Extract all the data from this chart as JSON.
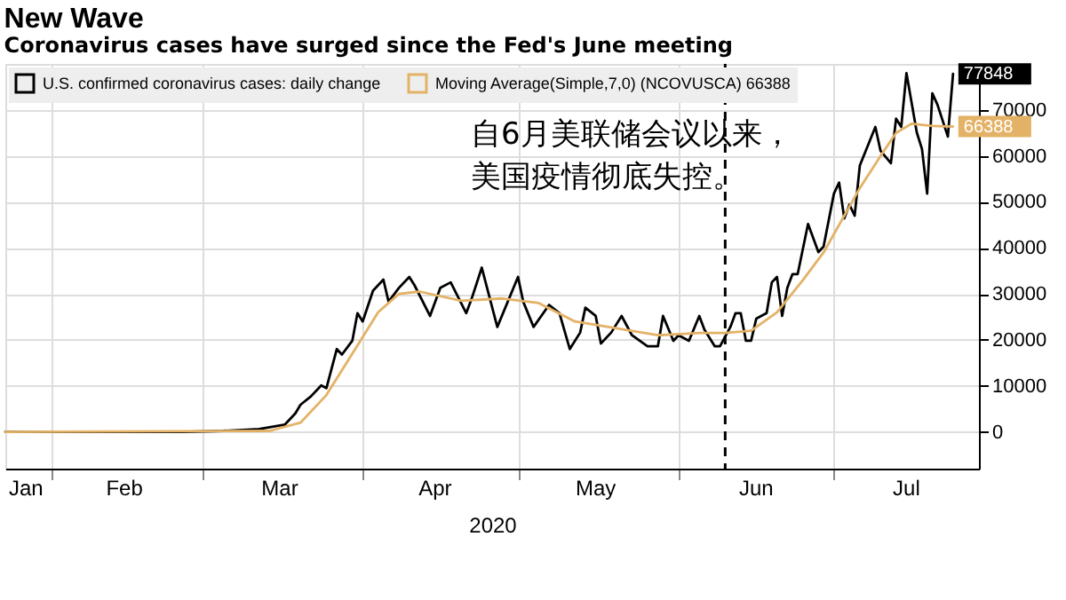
{
  "chart_data": {
    "type": "line",
    "title": "New Wave",
    "subtitle": "Coronavirus cases have surged since the Fed's June meeting",
    "xlabel": "2020",
    "xlim": [
      "2020-01-23",
      "2020-07-29"
    ],
    "xticks": [
      {
        "value": "2020-02-01",
        "label": null
      },
      {
        "value": "2020-03-01",
        "label": null
      },
      {
        "value": "2020-04-01",
        "label": null
      },
      {
        "value": "2020-05-01",
        "label": null
      },
      {
        "value": "2020-06-01",
        "label": null
      },
      {
        "value": "2020-07-01",
        "label": null
      },
      {
        "value": "2020-01-27",
        "label": "Jan"
      },
      {
        "value": "2020-02-15",
        "label": "Feb"
      },
      {
        "value": "2020-03-16",
        "label": "Mar"
      },
      {
        "value": "2020-04-15",
        "label": "Apr"
      },
      {
        "value": "2020-05-16",
        "label": "May"
      },
      {
        "value": "2020-06-16",
        "label": "Jun"
      },
      {
        "value": "2020-07-15",
        "label": "Jul"
      }
    ],
    "ylim": [
      -8000,
      80000
    ],
    "yticks": [
      0,
      10000,
      20000,
      30000,
      40000,
      50000,
      60000,
      70000
    ],
    "grid": true,
    "legend": "top left",
    "line_style": "solid",
    "marker": "none",
    "ref_lines": [
      {
        "axis": "x",
        "value": "2020-06-10",
        "color": "#000000",
        "line_style": "dashed"
      }
    ],
    "annotations": [
      "自6月美联储会议以来，美国疫情彻底失控。"
    ],
    "series": [
      {
        "name": "U.S. confirmed coronavirus cases: daily change",
        "color": "#000000",
        "x": [
          "2020-01-23",
          "2020-02-01",
          "2020-02-26",
          "2020-03-05",
          "2020-03-12",
          "2020-03-17",
          "2020-03-19",
          "2020-03-20",
          "2020-03-22",
          "2020-03-24",
          "2020-03-25",
          "2020-03-27",
          "2020-03-28",
          "2020-03-30",
          "2020-03-31",
          "2020-04-01",
          "2020-04-03",
          "2020-04-05",
          "2020-04-06",
          "2020-04-08",
          "2020-04-10",
          "2020-04-11",
          "2020-04-14",
          "2020-04-16",
          "2020-04-18",
          "2020-04-21",
          "2020-04-22",
          "2020-04-24",
          "2020-04-27",
          "2020-05-01",
          "2020-05-02",
          "2020-05-04",
          "2020-05-07",
          "2020-05-09",
          "2020-05-11",
          "2020-05-13",
          "2020-05-14",
          "2020-05-16",
          "2020-05-17",
          "2020-05-19",
          "2020-05-21",
          "2020-05-23",
          "2020-05-26",
          "2020-05-28",
          "2020-05-29",
          "2020-05-31",
          "2020-06-01",
          "2020-06-03",
          "2020-06-05",
          "2020-06-06",
          "2020-06-08",
          "2020-06-09",
          "2020-06-11",
          "2020-06-12",
          "2020-06-13",
          "2020-06-14",
          "2020-06-15",
          "2020-06-16",
          "2020-06-18",
          "2020-06-19",
          "2020-06-20",
          "2020-06-21",
          "2020-06-22",
          "2020-06-23",
          "2020-06-24",
          "2020-06-26",
          "2020-06-28",
          "2020-06-29",
          "2020-07-01",
          "2020-07-02",
          "2020-07-03",
          "2020-07-04",
          "2020-07-05",
          "2020-07-06",
          "2020-07-09",
          "2020-07-10",
          "2020-07-12",
          "2020-07-13",
          "2020-07-14",
          "2020-07-15",
          "2020-07-17",
          "2020-07-18",
          "2020-07-19",
          "2020-07-20",
          "2020-07-21",
          "2020-07-23",
          "2020-07-24"
        ],
        "values": [
          0,
          0,
          0,
          200,
          600,
          1600,
          4000,
          5900,
          7700,
          10100,
          9500,
          18000,
          16800,
          19800,
          25800,
          24000,
          30700,
          33100,
          28300,
          31300,
          33700,
          31900,
          25200,
          31300,
          32500,
          25800,
          28800,
          35700,
          22800,
          33700,
          28300,
          22800,
          27600,
          25800,
          18000,
          21600,
          27000,
          25200,
          19200,
          21600,
          25200,
          21000,
          18600,
          18600,
          25200,
          19800,
          21000,
          19800,
          25200,
          22200,
          18600,
          18600,
          22800,
          25800,
          25800,
          19800,
          19800,
          24600,
          25800,
          32500,
          33700,
          25200,
          31300,
          34300,
          34300,
          45200,
          39100,
          40300,
          51800,
          54200,
          46400,
          49400,
          47000,
          57900,
          66300,
          61100,
          58400,
          68100,
          66300,
          78000,
          65100,
          61500,
          51800,
          73600,
          71100,
          64200,
          77848
        ],
        "value_labels": [
          null,
          null,
          null,
          null,
          null,
          null,
          null,
          null,
          null,
          null,
          null,
          null,
          null,
          null,
          null,
          null,
          null,
          null,
          null,
          null,
          null,
          null,
          null,
          null,
          null,
          null,
          null,
          null,
          null,
          null,
          null,
          null,
          null,
          null,
          null,
          null,
          null,
          null,
          null,
          null,
          null,
          null,
          null,
          null,
          null,
          null,
          null,
          null,
          null,
          null,
          null,
          null,
          null,
          null,
          null,
          null,
          null,
          null,
          null,
          null,
          null,
          null,
          null,
          null,
          null,
          null,
          null,
          null,
          null,
          null,
          null,
          null,
          null,
          null,
          null,
          null,
          null,
          null,
          null,
          null,
          null,
          null,
          null,
          null,
          null,
          null,
          "77848"
        ]
      },
      {
        "name": "Moving Average(Simple,7,0) (NCOVUSCA) 66388",
        "color": "#e3b266",
        "x": [
          "2020-01-23",
          "2020-03-14",
          "2020-03-20",
          "2020-03-25",
          "2020-03-30",
          "2020-04-04",
          "2020-04-08",
          "2020-04-12",
          "2020-04-20",
          "2020-04-28",
          "2020-05-05",
          "2020-05-12",
          "2020-05-20",
          "2020-05-28",
          "2020-06-05",
          "2020-06-10",
          "2020-06-15",
          "2020-06-20",
          "2020-06-25",
          "2020-06-29",
          "2020-07-06",
          "2020-07-10",
          "2020-07-13",
          "2020-07-16",
          "2020-07-20",
          "2020-07-24"
        ],
        "values": [
          0,
          200,
          2000,
          8000,
          17000,
          26000,
          30000,
          30500,
          28500,
          29000,
          28000,
          24000,
          22500,
          21000,
          21500,
          21500,
          22000,
          26000,
          33000,
          39000,
          53000,
          60000,
          65000,
          67000,
          66500,
          66388
        ],
        "value_labels": [
          null,
          null,
          null,
          null,
          null,
          null,
          null,
          null,
          null,
          null,
          null,
          null,
          null,
          null,
          null,
          null,
          null,
          null,
          null,
          null,
          null,
          null,
          null,
          null,
          null,
          "66388"
        ]
      }
    ]
  }
}
